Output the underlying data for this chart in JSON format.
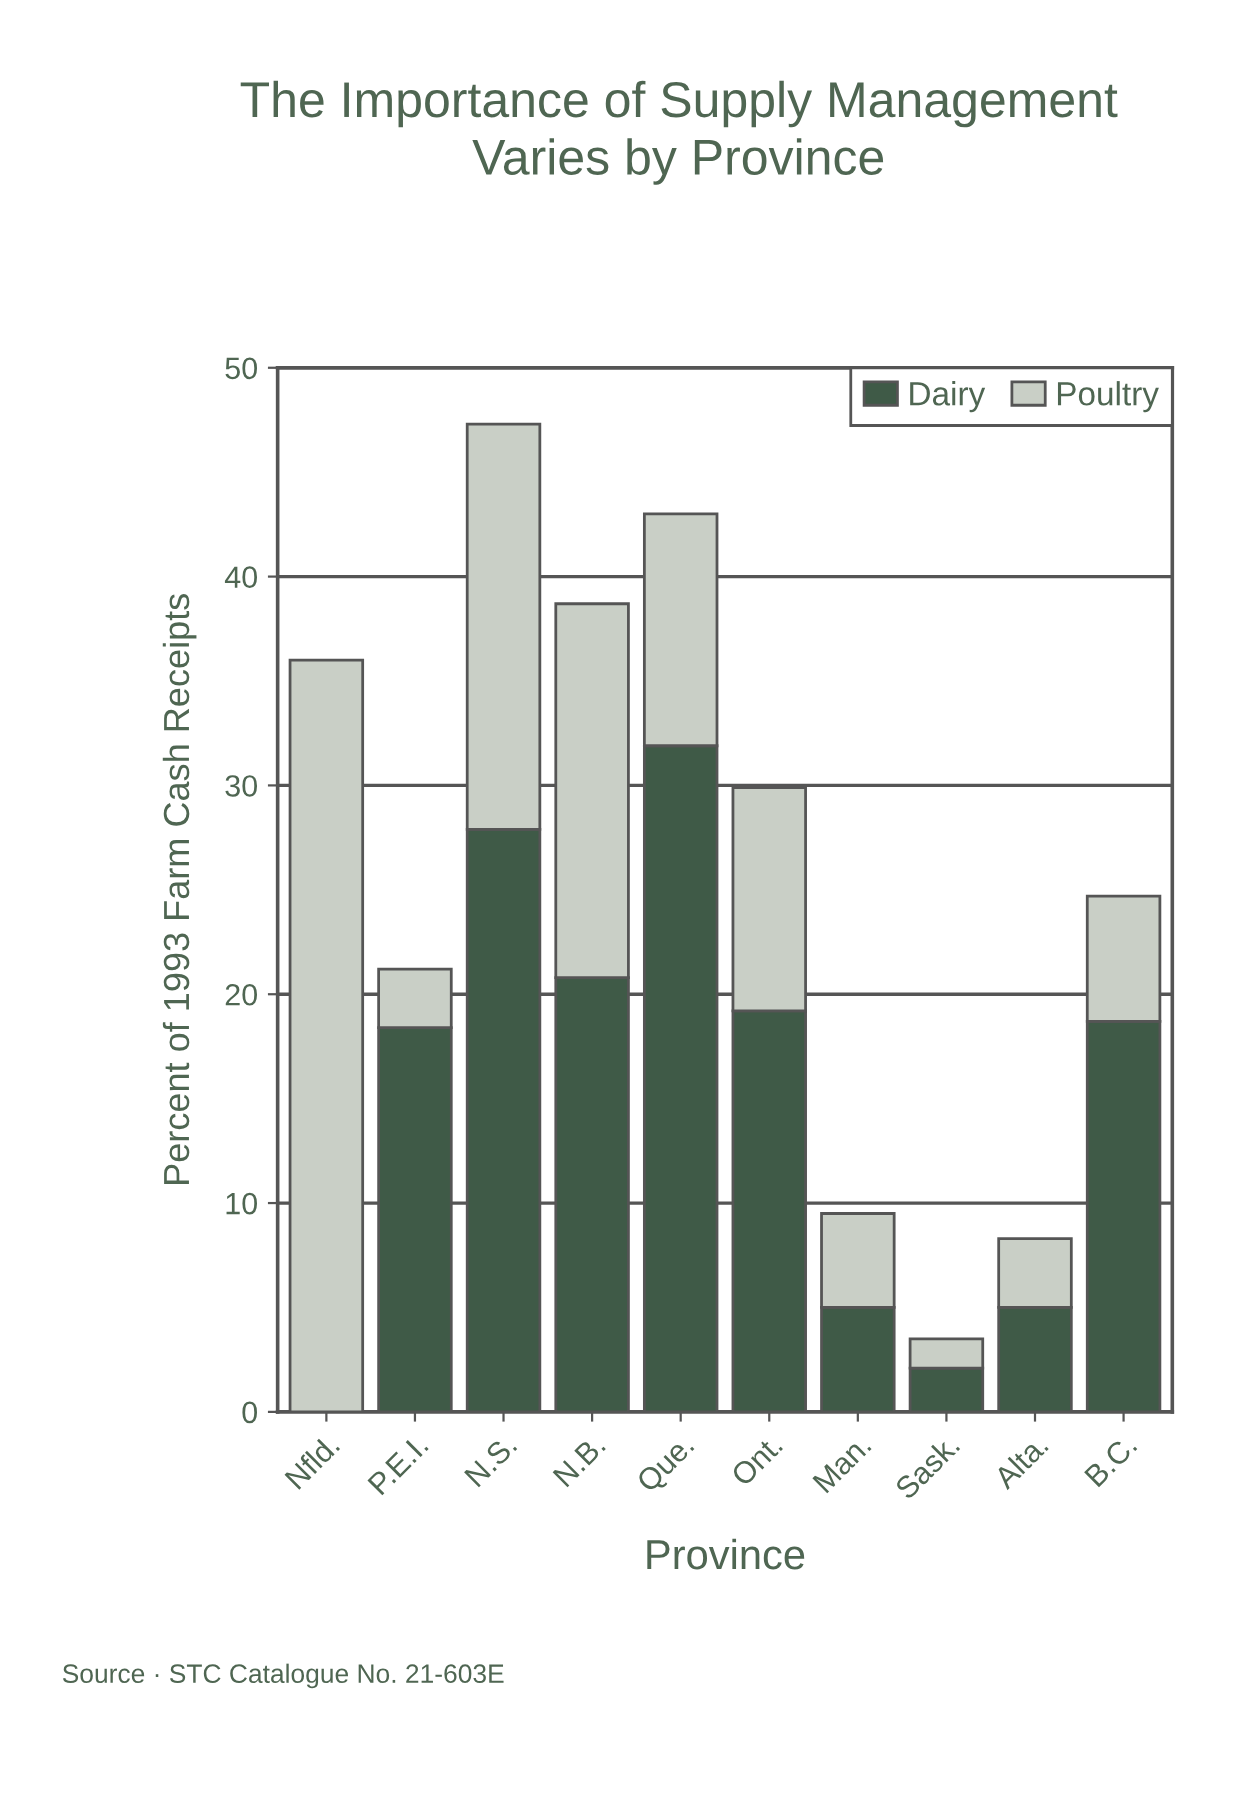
{
  "chart_data": {
    "type": "bar",
    "title": "The Importance of Supply Management\nVaries by Province",
    "xlabel": "Province",
    "ylabel": "Percent of 1993 Farm Cash Receipts",
    "categories": [
      "Nfld.",
      "P.E.I.",
      "N.S.",
      "N.B.",
      "Que.",
      "Ont.",
      "Man.",
      "Sask.",
      "Alta.",
      "B.C."
    ],
    "series": [
      {
        "name": "Dairy",
        "color": "#3f5a47",
        "values": [
          0,
          18.4,
          27.9,
          20.8,
          31.9,
          19.2,
          5.0,
          2.1,
          5.0,
          18.7
        ]
      },
      {
        "name": "Poultry",
        "color": "#c9cfc6",
        "values": [
          36.0,
          2.8,
          19.4,
          17.9,
          11.1,
          10.7,
          4.5,
          1.4,
          3.3,
          6.0
        ]
      }
    ],
    "stacked": true,
    "ylim": [
      0,
      50
    ],
    "yticks": [
      0,
      10,
      20,
      30,
      40,
      50
    ],
    "grid": "y",
    "legend": "top right",
    "annotations": [
      "Source · STC Catalogue No. 21-603E"
    ]
  }
}
